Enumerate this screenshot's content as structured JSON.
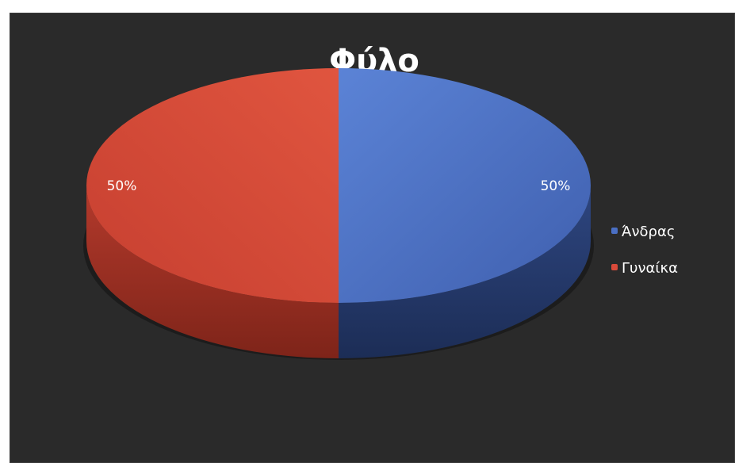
{
  "chart_data": {
    "type": "pie",
    "title": "Φύλο",
    "slices": [
      {
        "name": "Άνδρας",
        "value": 50,
        "label": "50%",
        "color": "#4a6fc4"
      },
      {
        "name": "Γυναίκα",
        "value": 50,
        "label": "50%",
        "color": "#d94a3a"
      }
    ],
    "legend_position": "right",
    "style": "3d-pie"
  },
  "colors": {
    "background": "#2a2a2a",
    "male": "#4a6fc4",
    "female": "#d94a3a"
  }
}
